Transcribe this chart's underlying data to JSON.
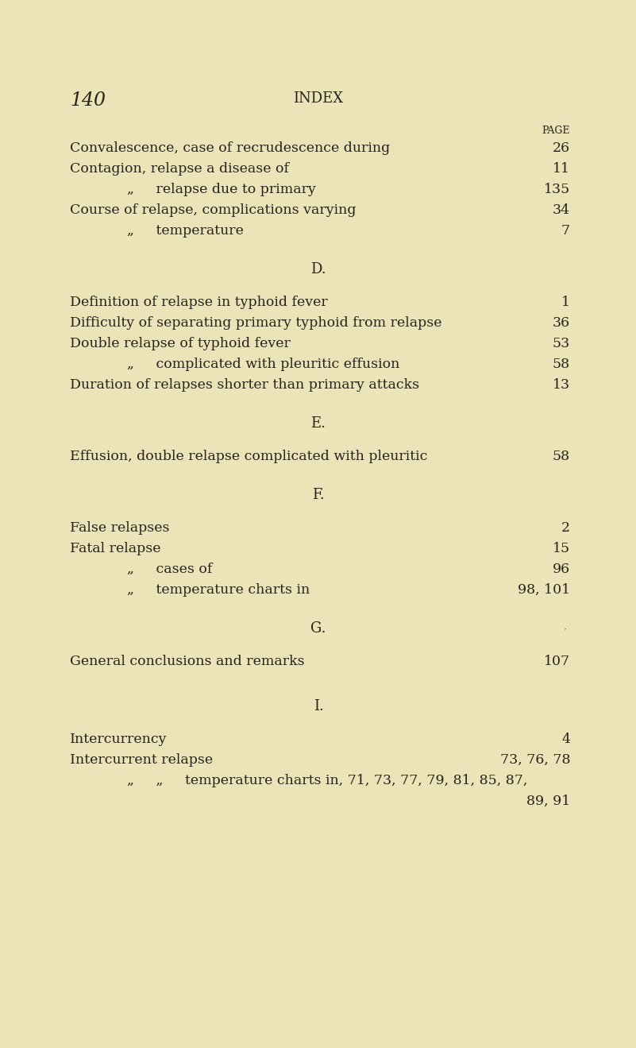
{
  "bg_color": "#EAE4B8",
  "text_color": "#2a2218",
  "page_number": "140",
  "page_title": "INDEX",
  "page_label": "PAGE",
  "figsize": [
    8.01,
    13.19
  ],
  "dpi": 100,
  "serif": "DejaVu Serif",
  "entries_C": [
    {
      "indent": 0,
      "text": "Convalescence, case of recrudescence during",
      "page": "26"
    },
    {
      "indent": 0,
      "text": "Contagion, relapse a disease of",
      "page": "11"
    },
    {
      "indent": 1,
      "text": "„     relapse due to primary",
      "page": "135"
    },
    {
      "indent": 0,
      "text": "Course of relapse, complications varying",
      "page": "34"
    },
    {
      "indent": 1,
      "text": "„     temperature",
      "page": "7"
    }
  ],
  "entries_D": [
    {
      "indent": 0,
      "text": "Definition of relapse in typhoid fever",
      "page": "1"
    },
    {
      "indent": 0,
      "text": "Difficulty of separating primary typhoid from relapse",
      "page": "36"
    },
    {
      "indent": 0,
      "text": "Double relapse of typhoid fever",
      "page": "53"
    },
    {
      "indent": 1,
      "text": "„     complicated with pleuritic effusion",
      "page": "58"
    },
    {
      "indent": 0,
      "text": "Duration of relapses shorter than primary attacks",
      "page": "13"
    }
  ],
  "entries_E": [
    {
      "indent": 0,
      "text": "Effusion, double relapse complicated with pleuritic",
      "page": "58"
    }
  ],
  "entries_F": [
    {
      "indent": 0,
      "text": "False relapses",
      "page": "2"
    },
    {
      "indent": 0,
      "text": "Fatal relapse",
      "page": "15"
    },
    {
      "indent": 1,
      "text": "„     cases of",
      "page": "96"
    },
    {
      "indent": 1,
      "text": "„     temperature charts in",
      "page": "98, 101"
    }
  ],
  "entries_G": [
    {
      "indent": 0,
      "text": "General conclusions and remarks",
      "page": "107"
    }
  ],
  "entries_I_1": {
    "indent": 0,
    "text": "Intercurrency",
    "page": "4"
  },
  "entries_I_2": {
    "indent": 0,
    "text": "Intercurrent relapse",
    "page": "73, 76, 78"
  },
  "entries_I_3a": "„     „     temperature charts in, 71, 73, 77, 79, 81, 85, 87,",
  "entries_I_3b": "89, 91"
}
